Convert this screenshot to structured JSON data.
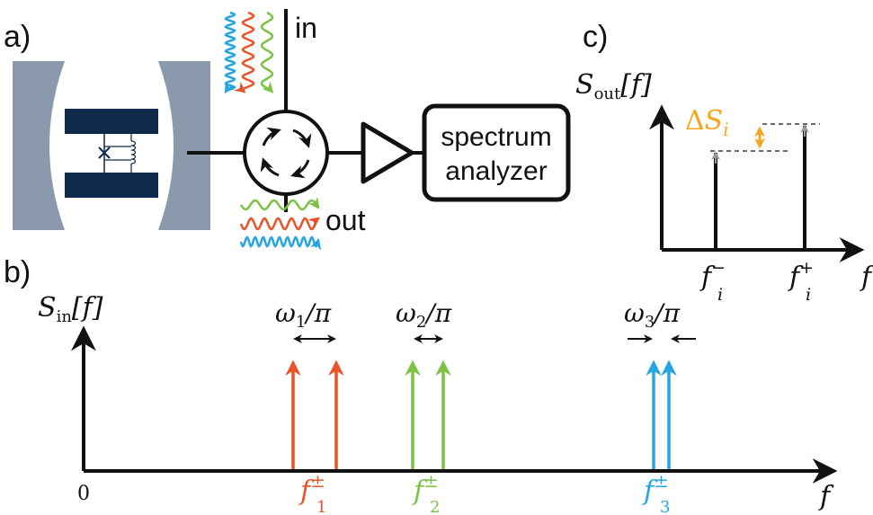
{
  "panels": {
    "a": {
      "label": "a)",
      "port_in": "in",
      "port_out": "out",
      "analyzer_line1": "spectrum",
      "analyzer_line2": "analyzer"
    },
    "b": {
      "label": "b)",
      "y_axis": {
        "base": "S",
        "sub": "in",
        "arg": "[f]"
      },
      "x_axis_label": "f",
      "origin_label": "0",
      "separations": [
        {
          "omega": "ω",
          "sub": "1",
          "tail": "/π",
          "color": "#e8542b"
        },
        {
          "omega": "ω",
          "sub": "2",
          "tail": "/π",
          "color": "#7cc243"
        },
        {
          "omega": "ω",
          "sub": "3",
          "tail": "/π",
          "color": "#25a6e0"
        }
      ],
      "tone_pairs": [
        {
          "base": "f",
          "sup": "±",
          "sub": "1",
          "color": "#e8542b"
        },
        {
          "base": "f",
          "sup": "±",
          "sub": "2",
          "color": "#7cc243"
        },
        {
          "base": "f",
          "sup": "±",
          "sub": "3",
          "color": "#25a6e0"
        }
      ]
    },
    "c": {
      "label": "c)",
      "y_axis": {
        "base": "S",
        "sub": "out",
        "arg": "[f]"
      },
      "delta": {
        "prefix": "Δ",
        "base": "S",
        "sub": "i",
        "color": "#f4a61f"
      },
      "peak_minus": {
        "base": "f",
        "sub": "i",
        "sup": "−"
      },
      "peak_plus": {
        "base": "f",
        "sub": "i",
        "sup": "+"
      },
      "x_axis_label": "f"
    }
  },
  "colors": {
    "red": "#e8542b",
    "green": "#7cc243",
    "blue": "#25a6e0",
    "orange": "#f4a61f",
    "navy": "#0f2a4a",
    "mirror_gray": "#8b99ac"
  }
}
